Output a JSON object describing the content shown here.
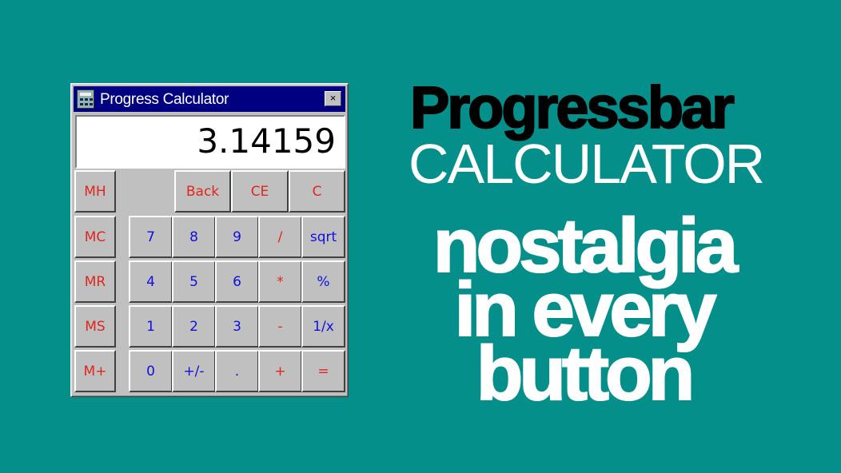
{
  "window": {
    "title": "Progress Calculator",
    "close_label": "×",
    "display_value": "3.14159"
  },
  "buttons": {
    "top": [
      "Back",
      "CE",
      "C"
    ],
    "memory": [
      "MH",
      "MC",
      "MR",
      "MS",
      "M+"
    ],
    "grid": [
      [
        "7",
        "8",
        "9",
        "/",
        "sqrt"
      ],
      [
        "4",
        "5",
        "6",
        "*",
        "%"
      ],
      [
        "1",
        "2",
        "3",
        "-",
        "1/x"
      ],
      [
        "0",
        "+/-",
        ".",
        "+",
        "="
      ]
    ]
  },
  "headline": {
    "line1": "Progressbar",
    "line2": "CALCULATOR",
    "tagline": [
      "nostalgia",
      "in every",
      "button"
    ]
  },
  "colors": {
    "background": "#058f8b",
    "titlebar": "#000080",
    "red_label": "#e0261d",
    "blue_label": "#1010e0"
  }
}
